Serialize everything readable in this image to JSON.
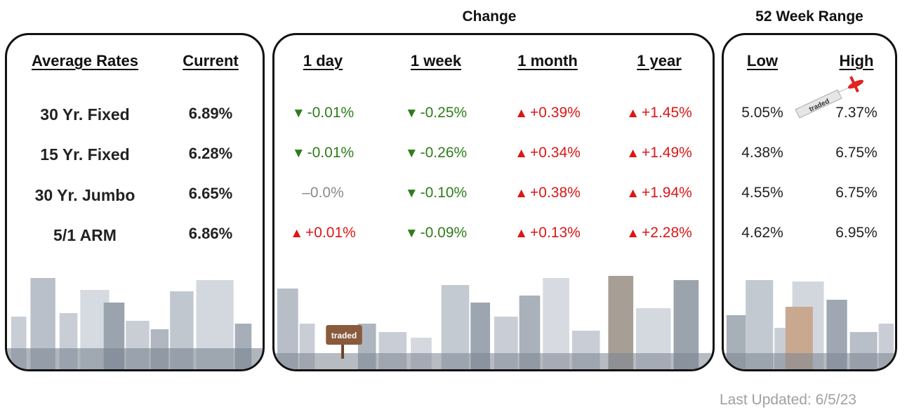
{
  "headers": {
    "change_title": "Change",
    "range_title": "52 Week Range",
    "average_rates": "Average Rates",
    "current": "Current",
    "day": "1 day",
    "week": "1 week",
    "month": "1 month",
    "year": "1 year",
    "low": "Low",
    "high": "High"
  },
  "rows": [
    {
      "label": "30 Yr. Fixed",
      "current": "6.89%",
      "day": "-0.01%",
      "week": "-0.25%",
      "month": "+0.39%",
      "year": "+1.45%",
      "low": "5.05%",
      "high": "7.37%"
    },
    {
      "label": "15 Yr. Fixed",
      "current": "6.28%",
      "day": "-0.01%",
      "week": "-0.26%",
      "month": "+0.34%",
      "year": "+1.49%",
      "low": "4.38%",
      "high": "6.75%"
    },
    {
      "label": "30 Yr. Jumbo",
      "current": "6.65%",
      "day": "–0.0%",
      "week": "-0.10%",
      "month": "+0.38%",
      "year": "+1.94%",
      "low": "4.55%",
      "high": "6.75%"
    },
    {
      "label": "5/1 ARM",
      "current": "6.86%",
      "day": "+0.01%",
      "week": "-0.09%",
      "month": "+0.13%",
      "year": "+2.28%",
      "low": "4.62%",
      "high": "6.95%"
    }
  ],
  "arrows": {
    "down": "▼",
    "up": "▲"
  },
  "branding": {
    "sign_text": "traded",
    "banner_text": "traded"
  },
  "footer": {
    "last_updated": "Last Updated: 6/5/23"
  },
  "colors": {
    "down": "#2e7d1a",
    "up": "#dd1616",
    "flat": "#8a8a8a",
    "border": "#111111"
  }
}
